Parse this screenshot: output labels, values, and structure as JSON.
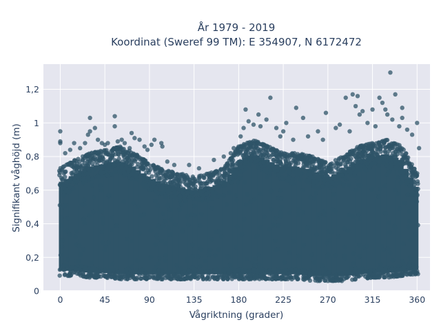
{
  "chart_data": {
    "type": "scatter",
    "title_lines": [
      "År 1979 - 2019",
      "Koordinat (Sweref 99 TM): E 354907, N 6172472"
    ],
    "xlabel": "Vågriktning (grader)",
    "ylabel": "Signifikant våghöjd (m)",
    "xlim": [
      -17,
      373
    ],
    "ylim": [
      0,
      1.35
    ],
    "xticks": [
      0,
      45,
      90,
      135,
      180,
      225,
      270,
      315,
      360
    ],
    "xtick_labels": [
      "0",
      "45",
      "90",
      "135",
      "180",
      "225",
      "270",
      "315",
      "360"
    ],
    "yticks": [
      0,
      0.2,
      0.4,
      0.6,
      0.8,
      1.0,
      1.2
    ],
    "ytick_labels": [
      "0",
      "0,2",
      "0,4",
      "0,6",
      "0,8",
      "1",
      "1,2"
    ],
    "grid": true,
    "marker_color": "#2f5468",
    "plot_bgcolor": "#e5e6ef",
    "gridcolor": "#ffffff",
    "envelope": [
      {
        "x": 0,
        "ymin": 0.09,
        "ymax": 0.73
      },
      {
        "x": 15,
        "ymin": 0.09,
        "ymax": 0.78
      },
      {
        "x": 30,
        "ymin": 0.08,
        "ymax": 0.82
      },
      {
        "x": 45,
        "ymin": 0.08,
        "ymax": 0.84
      },
      {
        "x": 60,
        "ymin": 0.07,
        "ymax": 0.86
      },
      {
        "x": 75,
        "ymin": 0.07,
        "ymax": 0.82
      },
      {
        "x": 90,
        "ymin": 0.07,
        "ymax": 0.76
      },
      {
        "x": 105,
        "ymin": 0.07,
        "ymax": 0.72
      },
      {
        "x": 120,
        "ymin": 0.07,
        "ymax": 0.7
      },
      {
        "x": 135,
        "ymin": 0.07,
        "ymax": 0.68
      },
      {
        "x": 150,
        "ymin": 0.07,
        "ymax": 0.7
      },
      {
        "x": 165,
        "ymin": 0.07,
        "ymax": 0.73
      },
      {
        "x": 180,
        "ymin": 0.07,
        "ymax": 0.86
      },
      {
        "x": 195,
        "ymin": 0.07,
        "ymax": 0.9
      },
      {
        "x": 210,
        "ymin": 0.07,
        "ymax": 0.86
      },
      {
        "x": 225,
        "ymin": 0.07,
        "ymax": 0.82
      },
      {
        "x": 240,
        "ymin": 0.07,
        "ymax": 0.82
      },
      {
        "x": 255,
        "ymin": 0.06,
        "ymax": 0.8
      },
      {
        "x": 270,
        "ymin": 0.06,
        "ymax": 0.76
      },
      {
        "x": 285,
        "ymin": 0.06,
        "ymax": 0.8
      },
      {
        "x": 300,
        "ymin": 0.07,
        "ymax": 0.86
      },
      {
        "x": 315,
        "ymin": 0.08,
        "ymax": 0.88
      },
      {
        "x": 330,
        "ymin": 0.08,
        "ymax": 0.9
      },
      {
        "x": 345,
        "ymin": 0.09,
        "ymax": 0.86
      },
      {
        "x": 360,
        "ymin": 0.1,
        "ymax": 0.7
      }
    ],
    "outliers": [
      {
        "x": 0,
        "y": 0.95
      },
      {
        "x": 0,
        "y": 0.89
      },
      {
        "x": 0,
        "y": 0.88
      },
      {
        "x": 5,
        "y": 0.82
      },
      {
        "x": 10,
        "y": 0.84
      },
      {
        "x": 14,
        "y": 0.88
      },
      {
        "x": 20,
        "y": 0.85
      },
      {
        "x": 25,
        "y": 0.88
      },
      {
        "x": 28,
        "y": 0.93
      },
      {
        "x": 30,
        "y": 0.95
      },
      {
        "x": 30,
        "y": 1.03
      },
      {
        "x": 35,
        "y": 0.97
      },
      {
        "x": 38,
        "y": 0.9
      },
      {
        "x": 42,
        "y": 0.88
      },
      {
        "x": 45,
        "y": 0.87
      },
      {
        "x": 48,
        "y": 0.88
      },
      {
        "x": 55,
        "y": 1.04
      },
      {
        "x": 55,
        "y": 0.98
      },
      {
        "x": 58,
        "y": 0.89
      },
      {
        "x": 62,
        "y": 0.9
      },
      {
        "x": 65,
        "y": 0.88
      },
      {
        "x": 70,
        "y": 0.85
      },
      {
        "x": 72,
        "y": 0.94
      },
      {
        "x": 75,
        "y": 0.91
      },
      {
        "x": 80,
        "y": 0.9
      },
      {
        "x": 85,
        "y": 0.86
      },
      {
        "x": 88,
        "y": 0.84
      },
      {
        "x": 92,
        "y": 0.87
      },
      {
        "x": 95,
        "y": 0.9
      },
      {
        "x": 102,
        "y": 0.88
      },
      {
        "x": 103,
        "y": 0.86
      },
      {
        "x": 108,
        "y": 0.77
      },
      {
        "x": 115,
        "y": 0.75
      },
      {
        "x": 130,
        "y": 0.75
      },
      {
        "x": 140,
        "y": 0.73
      },
      {
        "x": 155,
        "y": 0.78
      },
      {
        "x": 165,
        "y": 0.8
      },
      {
        "x": 172,
        "y": 0.82
      },
      {
        "x": 175,
        "y": 0.85
      },
      {
        "x": 182,
        "y": 0.92
      },
      {
        "x": 185,
        "y": 0.97
      },
      {
        "x": 187,
        "y": 1.08
      },
      {
        "x": 190,
        "y": 1.01
      },
      {
        "x": 195,
        "y": 0.99
      },
      {
        "x": 200,
        "y": 1.05
      },
      {
        "x": 202,
        "y": 0.98
      },
      {
        "x": 208,
        "y": 1.02
      },
      {
        "x": 212,
        "y": 1.15
      },
      {
        "x": 218,
        "y": 0.97
      },
      {
        "x": 222,
        "y": 0.92
      },
      {
        "x": 225,
        "y": 0.95
      },
      {
        "x": 228,
        "y": 1.0
      },
      {
        "x": 235,
        "y": 0.9
      },
      {
        "x": 238,
        "y": 1.09
      },
      {
        "x": 245,
        "y": 1.03
      },
      {
        "x": 250,
        "y": 0.92
      },
      {
        "x": 260,
        "y": 0.95
      },
      {
        "x": 265,
        "y": 0.9
      },
      {
        "x": 268,
        "y": 1.06
      },
      {
        "x": 278,
        "y": 0.97
      },
      {
        "x": 282,
        "y": 0.99
      },
      {
        "x": 288,
        "y": 1.15
      },
      {
        "x": 292,
        "y": 0.95
      },
      {
        "x": 295,
        "y": 1.17
      },
      {
        "x": 298,
        "y": 1.1
      },
      {
        "x": 300,
        "y": 1.16
      },
      {
        "x": 302,
        "y": 1.05
      },
      {
        "x": 305,
        "y": 1.07
      },
      {
        "x": 310,
        "y": 1.0
      },
      {
        "x": 315,
        "y": 1.08
      },
      {
        "x": 318,
        "y": 0.98
      },
      {
        "x": 322,
        "y": 1.15
      },
      {
        "x": 325,
        "y": 1.12
      },
      {
        "x": 328,
        "y": 1.08
      },
      {
        "x": 330,
        "y": 1.05
      },
      {
        "x": 333,
        "y": 1.3
      },
      {
        "x": 335,
        "y": 1.02
      },
      {
        "x": 338,
        "y": 1.17
      },
      {
        "x": 342,
        "y": 0.98
      },
      {
        "x": 345,
        "y": 1.03
      },
      {
        "x": 345,
        "y": 1.09
      },
      {
        "x": 350,
        "y": 0.96
      },
      {
        "x": 355,
        "y": 0.93
      },
      {
        "x": 360,
        "y": 1.0
      },
      {
        "x": 362,
        "y": 0.85
      }
    ]
  }
}
